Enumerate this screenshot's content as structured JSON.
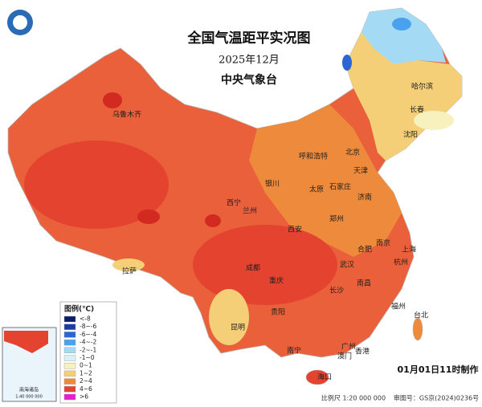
{
  "header": {
    "title": "全国气温距平实况图",
    "subtitle": "2025年12月",
    "agency": "中央气象台"
  },
  "legend": {
    "title": "图例(℃)",
    "items": [
      {
        "label": "<-8",
        "color": "#0b1d6b"
      },
      {
        "label": "-8~-6",
        "color": "#1c3da3"
      },
      {
        "label": "-6~-4",
        "color": "#2a67d2"
      },
      {
        "label": "-4~-2",
        "color": "#4aa2ec"
      },
      {
        "label": "-2~-1",
        "color": "#a5daf4"
      },
      {
        "label": "-1~0",
        "color": "#d9f0f4"
      },
      {
        "label": "0~1",
        "color": "#f7f2bd"
      },
      {
        "label": "1~2",
        "color": "#f5cf78"
      },
      {
        "label": "2~4",
        "color": "#ee8a3c"
      },
      {
        "label": "4~6",
        "color": "#e3432f"
      },
      {
        "label": ">6",
        "color": "#e41fcf"
      }
    ]
  },
  "cities": [
    "乌鲁木齐",
    "哈尔滨",
    "长春",
    "沈阳",
    "北京",
    "天津",
    "呼和浩特",
    "银川",
    "太原",
    "石家庄",
    "济南",
    "西宁",
    "兰州",
    "西安",
    "郑州",
    "拉萨",
    "成都",
    "重庆",
    "武汉",
    "合肥",
    "南京",
    "上海",
    "杭州",
    "长沙",
    "南昌",
    "贵阳",
    "昆明",
    "福州",
    "台北",
    "南宁",
    "广州",
    "澳门",
    "香港",
    "海口"
  ],
  "inset": {
    "title": "南海诸岛",
    "scale": "1:40 000 000"
  },
  "footer": {
    "made": "01月01日11时制作",
    "scale": "比例尺 1:20 000 000",
    "review": "审图号：GS京(2024)0236号"
  }
}
